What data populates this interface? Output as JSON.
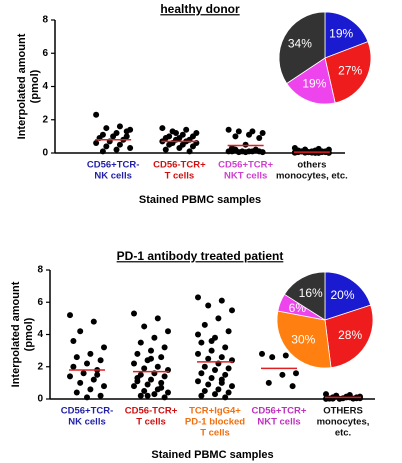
{
  "chart_data": [
    {
      "type": "dot",
      "title": "healthy donor",
      "ylabel": [
        "Interpolated amount",
        "(pmol)"
      ],
      "xlabel": "Stained PBMC samples",
      "ylim": [
        0,
        8
      ],
      "yticks": [
        0,
        2,
        4,
        6,
        8
      ],
      "categories": [
        [
          "CD56+TCR-",
          "NK cells"
        ],
        [
          "CD56-TCR+",
          "T cells"
        ],
        [
          "CD56+TCR+",
          "NKT cells"
        ],
        [
          "others",
          "monocytes, etc."
        ]
      ],
      "label_colors": [
        "#1f1fa8",
        "#d01010",
        "#d040d0",
        "#111111"
      ],
      "dot_color": "#000000",
      "mean_color": "#e02020",
      "means": [
        0.8,
        0.7,
        0.45,
        0.05
      ],
      "values": [
        [
          2.3,
          1.6,
          1.5,
          1.4,
          1.2,
          1.1,
          1.0,
          1.0,
          0.9,
          0.8,
          0.7,
          0.6,
          0.5,
          0.4,
          0.3,
          0.2,
          0.1,
          1.3
        ],
        [
          1.5,
          1.4,
          1.3,
          1.2,
          1.1,
          1.0,
          1.0,
          0.9,
          0.9,
          0.8,
          0.8,
          0.7,
          0.7,
          0.6,
          0.6,
          0.5,
          0.5,
          0.4,
          0.3,
          0.2,
          0.1,
          1.2
        ],
        [
          1.4,
          1.3,
          1.3,
          1.2,
          1.1,
          1.0,
          0.9,
          0.5,
          0.3,
          0.2,
          0.1,
          0.1,
          0.1,
          0.05,
          0.05,
          0.1,
          0.2,
          0.1,
          0.05,
          0.1
        ],
        [
          0.3,
          0.25,
          0.2,
          0.2,
          0.15,
          0.1,
          0.1,
          0.1,
          0.05,
          0.05,
          0.05,
          0.02,
          0.02,
          0.02,
          0.01,
          0.01,
          0.1,
          0.05,
          0.02,
          0.15,
          0.1,
          0.05,
          0.02,
          0.01,
          0.2
        ]
      ]
    },
    {
      "type": "pie",
      "values": [
        19,
        27,
        19,
        34
      ],
      "value_labels": [
        "19%",
        "27%",
        "19%",
        "34%"
      ],
      "colors": [
        "#1a1ad0",
        "#ee1c1c",
        "#ee44ee",
        "#333333"
      ]
    },
    {
      "type": "dot",
      "title": "PD-1 antibody treated patient",
      "ylabel": [
        "Interpolated amount",
        "(pmol)"
      ],
      "xlabel": "Stained PBMC samples",
      "ylim": [
        0,
        8
      ],
      "yticks": [
        0,
        2,
        4,
        6,
        8
      ],
      "categories": [
        [
          "CD56+TCR-",
          "NK cells"
        ],
        [
          "CD56-TCR+",
          "T cells"
        ],
        [
          "TCR+IgG4+",
          "PD-1 blocked",
          "T cells"
        ],
        [
          "CD56+TCR+",
          "NKT cells"
        ],
        [
          "OTHERS",
          "monocytes,",
          "etc."
        ]
      ],
      "label_colors": [
        "#1f1fa8",
        "#d01010",
        "#f07010",
        "#c030c0",
        "#111111"
      ],
      "dot_color": "#000000",
      "mean_color": "#e02020",
      "means": [
        1.8,
        1.7,
        2.3,
        1.9,
        0.1
      ],
      "values": [
        [
          5.2,
          4.8,
          4.2,
          3.2,
          2.8,
          2.6,
          2.4,
          2.2,
          2.0,
          1.8,
          1.6,
          1.4,
          1.2,
          1.0,
          0.8,
          0.6,
          0.4,
          0.2,
          0.1,
          3.6,
          1.5
        ],
        [
          5.3,
          5.0,
          4.5,
          4.2,
          3.8,
          3.5,
          3.2,
          3.0,
          2.8,
          2.6,
          2.4,
          2.2,
          2.0,
          1.9,
          1.8,
          1.6,
          1.5,
          1.4,
          1.2,
          1.1,
          1.0,
          0.9,
          0.8,
          0.6,
          0.5,
          0.4,
          0.3,
          0.2,
          0.1,
          2.5,
          1.3,
          0.7,
          0.2
        ],
        [
          6.3,
          6.1,
          5.8,
          5.5,
          5.0,
          4.6,
          4.2,
          3.8,
          3.5,
          3.2,
          3.0,
          2.8,
          2.6,
          2.5,
          2.4,
          2.2,
          2.0,
          1.9,
          1.8,
          1.6,
          1.5,
          1.3,
          1.1,
          1.0,
          0.9,
          0.8,
          0.6,
          0.5,
          0.4,
          0.3,
          0.2,
          0.1,
          3.6,
          4.0,
          1.2
        ],
        [
          2.8,
          2.7,
          2.6,
          1.6,
          1.5,
          1.0,
          0.8
        ],
        [
          0.3,
          0.25,
          0.2,
          0.15,
          0.1,
          0.1,
          0.05,
          0.05,
          0.02,
          0.02,
          0.01,
          0.01,
          0.1,
          0.2,
          0.05,
          0.15,
          0.02,
          0.1
        ]
      ]
    },
    {
      "type": "pie",
      "values": [
        20,
        28,
        30,
        6,
        16
      ],
      "value_labels": [
        "20%",
        "28%",
        "30%",
        "6%",
        "16%"
      ],
      "colors": [
        "#1a1ad0",
        "#ee1c1c",
        "#ff8010",
        "#ee44ee",
        "#333333"
      ]
    }
  ]
}
